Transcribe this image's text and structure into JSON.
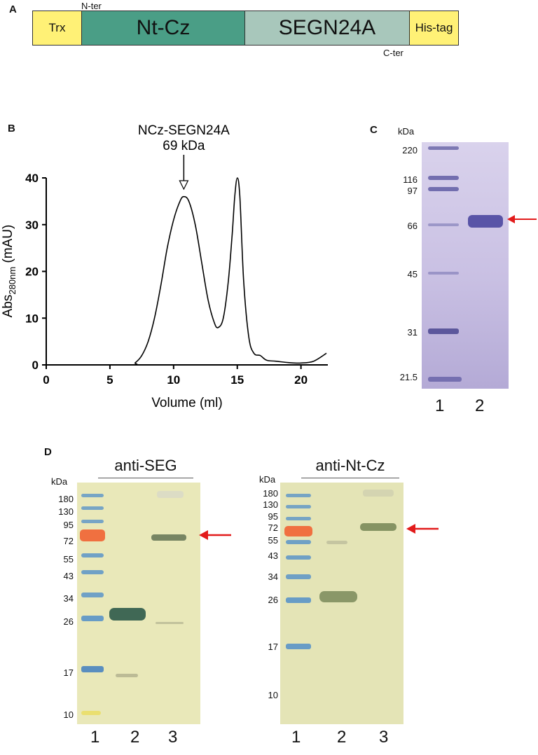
{
  "panels": {
    "a": "A",
    "b": "B",
    "c": "C",
    "d": "D"
  },
  "construct": {
    "n_ter": "N-ter",
    "c_ter": "C-ter",
    "segments": [
      {
        "label": "Trx",
        "color": "#fff176"
      },
      {
        "label": "Nt-Cz",
        "color": "#4a9e86"
      },
      {
        "label": "SEGN24A",
        "color": "#a8c7bb"
      },
      {
        "label": "His-tag",
        "color": "#fff176"
      }
    ]
  },
  "chart_data": {
    "type": "line",
    "xlabel": "Volume (ml)",
    "ylabel": "Abs280nm (mAU)",
    "ylabel_main": "Abs",
    "ylabel_sub": "280nm",
    "ylabel_unit": " (mAU)",
    "xlim": [
      0,
      22
    ],
    "ylim": [
      0,
      40
    ],
    "xticks": [
      "0",
      "5",
      "10",
      "15",
      "20"
    ],
    "yticks": [
      "0",
      "10",
      "20",
      "30",
      "40"
    ],
    "annotation_line1": "NCz-SEGN24A",
    "annotation_line2": "69 kDa",
    "annotation_x": 10.8,
    "x": [
      0,
      6.5,
      7,
      7.5,
      8,
      8.5,
      9,
      9.5,
      10,
      10.5,
      10.8,
      11.2,
      11.7,
      12.2,
      12.7,
      13.2,
      13.5,
      13.9,
      14.3,
      14.6,
      14.8,
      15.0,
      15.2,
      15.5,
      15.9,
      16.3,
      16.8,
      17.3,
      18,
      19,
      20,
      21,
      22
    ],
    "y": [
      0,
      0,
      0.5,
      2,
      5,
      10,
      17,
      25,
      31,
      35,
      36,
      35,
      30,
      22,
      14,
      9,
      8,
      10,
      18,
      28,
      36,
      40,
      36,
      18,
      6,
      2.5,
      2,
      1,
      0.8,
      0.5,
      0.4,
      0.8,
      2.5
    ]
  },
  "gel_c": {
    "kda": "kDa",
    "markers": [
      "220",
      "116",
      "97",
      "66",
      "45",
      "31",
      "21.5"
    ],
    "lanes": [
      "1",
      "2"
    ]
  },
  "blot_left": {
    "title": "anti-SEG",
    "kda": "kDa",
    "markers": [
      "180",
      "130",
      "95",
      "72",
      "55",
      "43",
      "34",
      "26",
      "17",
      "10"
    ],
    "lanes": [
      "1",
      "2",
      "3"
    ]
  },
  "blot_right": {
    "title": "anti-Nt-Cz",
    "kda": "kDa",
    "markers": [
      "180",
      "130",
      "95",
      "72",
      "55",
      "43",
      "34",
      "26",
      "17",
      "10"
    ],
    "lanes": [
      "1",
      "2",
      "3"
    ]
  }
}
